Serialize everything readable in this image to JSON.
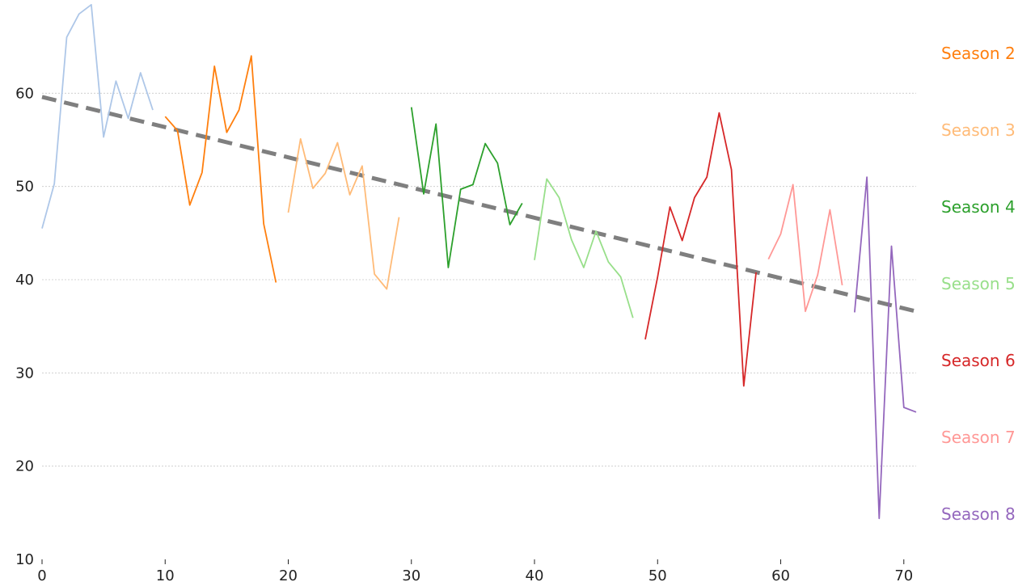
{
  "chart_data": {
    "type": "line",
    "title": "",
    "xlabel": "",
    "ylabel": "",
    "xlim": [
      0,
      71
    ],
    "ylim": [
      10,
      70
    ],
    "x_ticks": [
      0,
      10,
      20,
      30,
      40,
      50,
      60,
      70
    ],
    "y_ticks": [
      10,
      20,
      30,
      40,
      50,
      60
    ],
    "grid": "horizontal dotted",
    "legend_placement": "right",
    "series": [
      {
        "color": "#aec7e8",
        "x": [
          0,
          1,
          2,
          3,
          4,
          5,
          6,
          7,
          8,
          9
        ],
        "values": [
          45.5,
          50.3,
          66.0,
          68.5,
          69.5,
          55.3,
          61.3,
          57.3,
          62.2,
          58.2
        ]
      },
      {
        "name": "Season 2",
        "color": "#ff7f0e",
        "x": [
          10,
          11,
          12,
          13,
          14,
          15,
          16,
          17,
          18,
          19
        ],
        "values": [
          57.5,
          56.0,
          48.0,
          51.5,
          62.9,
          55.8,
          58.2,
          64.0,
          46.0,
          39.7
        ]
      },
      {
        "name": "Season 3",
        "color": "#ffbb78",
        "x": [
          20,
          21,
          22,
          23,
          24,
          25,
          26,
          27,
          28,
          29
        ],
        "values": [
          47.2,
          55.1,
          49.8,
          51.4,
          54.7,
          49.1,
          52.2,
          40.6,
          39.0,
          46.7
        ]
      },
      {
        "name": "Season 4",
        "color": "#2ca02c",
        "x": [
          30,
          31,
          32,
          33,
          34,
          35,
          36,
          37,
          38,
          39
        ],
        "values": [
          58.5,
          49.2,
          56.7,
          41.3,
          49.7,
          50.2,
          54.6,
          52.5,
          45.9,
          48.2
        ]
      },
      {
        "name": "Season 5",
        "color": "#98df8a",
        "x": [
          40,
          41,
          42,
          43,
          44,
          45,
          46,
          47,
          48
        ],
        "values": [
          42.1,
          50.8,
          48.8,
          44.3,
          41.3,
          45.2,
          41.9,
          40.3,
          35.9
        ]
      },
      {
        "name": "Season 6",
        "color": "#d62728",
        "x": [
          49,
          50,
          51,
          52,
          53,
          54,
          55,
          56,
          57,
          58
        ],
        "values": [
          33.6,
          40.3,
          47.8,
          44.2,
          48.8,
          51.0,
          57.9,
          51.8,
          28.6,
          40.8
        ]
      },
      {
        "name": "Season 7",
        "color": "#ff9896",
        "x": [
          59,
          60,
          61,
          62,
          63,
          64,
          65
        ],
        "values": [
          42.2,
          44.9,
          50.2,
          36.6,
          40.5,
          47.5,
          39.4
        ]
      },
      {
        "name": "Season 8",
        "color": "#9467bd",
        "x": [
          66,
          67,
          68,
          69,
          70,
          71
        ],
        "values": [
          36.5,
          51.0,
          14.4,
          43.6,
          26.3,
          25.8
        ]
      }
    ],
    "trend_line": {
      "color": "#7f7f7f",
      "style": "dashed",
      "x": [
        0,
        71
      ],
      "values": [
        59.6,
        36.6
      ]
    },
    "legend_entries": [
      {
        "label": "Season 2",
        "color": "#ff7f0e"
      },
      {
        "label": "Season 3",
        "color": "#ffbb78"
      },
      {
        "label": "Season 4",
        "color": "#2ca02c"
      },
      {
        "label": "Season 5",
        "color": "#98df8a"
      },
      {
        "label": "Season 6",
        "color": "#d62728"
      },
      {
        "label": "Season 7",
        "color": "#ff9896"
      },
      {
        "label": "Season 8",
        "color": "#9467bd"
      }
    ]
  }
}
